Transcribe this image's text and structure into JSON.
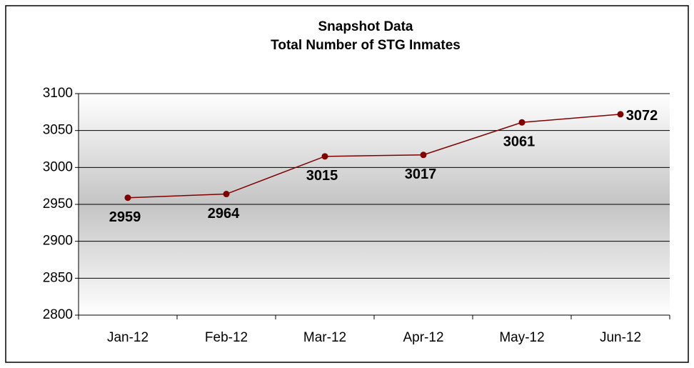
{
  "chart_data": {
    "type": "line",
    "title": "Snapshot Data",
    "subtitle": "Total Number of STG Inmates",
    "categories": [
      "Jan-12",
      "Feb-12",
      "Mar-12",
      "Apr-12",
      "May-12",
      "Jun-12"
    ],
    "values": [
      2959,
      2964,
      3015,
      3017,
      3061,
      3072
    ],
    "color": "#800000",
    "ylim": [
      2800,
      3100
    ],
    "yticks": [
      2800,
      2850,
      2900,
      2950,
      3000,
      3050,
      3100
    ],
    "grid": true
  }
}
